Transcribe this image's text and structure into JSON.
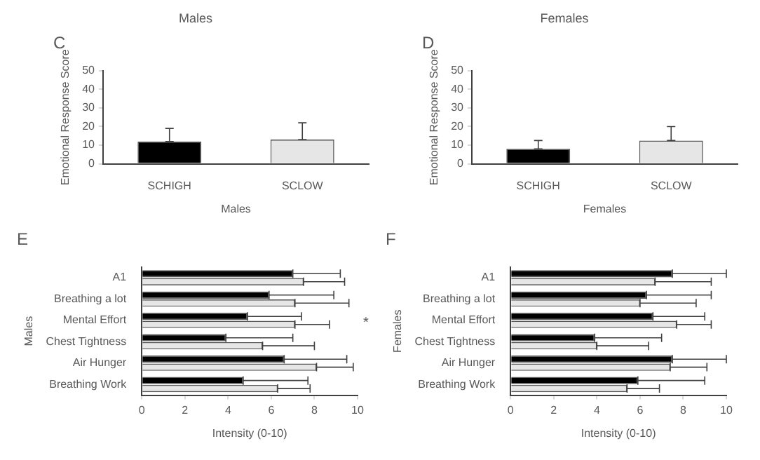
{
  "chart_data": [
    {
      "type": "bar",
      "title": "C",
      "subtitle": "Males",
      "xlabel": "Males",
      "ylabel": "Emotional Response Score",
      "categories": [
        "SCHIGH",
        "SCLOW"
      ],
      "values": [
        12,
        13
      ],
      "colors": [
        "#000000",
        "#e6e6e6"
      ],
      "errors": [
        [
          12,
          19
        ],
        [
          13,
          22
        ]
      ],
      "ylim": [
        0,
        50
      ],
      "yticks": [
        0,
        10,
        20,
        30,
        40,
        50
      ]
    },
    {
      "type": "bar",
      "title": "D",
      "subtitle": "Females",
      "xlabel": "Females",
      "ylabel": "Emotional Response Score",
      "categories": [
        "SCHIGH",
        "SCLOW"
      ],
      "values": [
        8,
        12.5
      ],
      "colors": [
        "#000000",
        "#e6e6e6"
      ],
      "errors": [
        [
          8,
          12.5
        ],
        [
          12.5,
          20
        ]
      ],
      "ylim": [
        0,
        50
      ],
      "yticks": [
        0,
        10,
        20,
        30,
        40,
        50
      ]
    },
    {
      "type": "bar",
      "orientation": "horizontal",
      "title": "E",
      "annotations": [
        "*"
      ],
      "xlabel": "Intensity (0-10)",
      "ylabel": "Males",
      "categories": [
        "A1",
        "Breathing a lot",
        "Mental Effort",
        "Chest Tightness",
        "Air Hunger",
        "Breathing Work"
      ],
      "series": [
        {
          "color": "#000000",
          "values": [
            7.0,
            5.9,
            4.9,
            3.9,
            6.6,
            4.7
          ],
          "errors": [
            [
              7.0,
              9.2
            ],
            [
              5.9,
              8.9
            ],
            [
              4.9,
              7.4
            ],
            [
              3.9,
              7.0
            ],
            [
              6.6,
              9.5
            ],
            [
              4.7,
              7.7
            ]
          ]
        },
        {
          "color": "#e6e6e6",
          "values": [
            7.5,
            7.1,
            7.1,
            5.6,
            8.1,
            6.3
          ],
          "errors": [
            [
              7.5,
              9.4
            ],
            [
              7.1,
              9.6
            ],
            [
              7.1,
              8.7
            ],
            [
              5.6,
              8.0
            ],
            [
              8.1,
              9.8
            ],
            [
              6.3,
              7.8
            ]
          ]
        }
      ],
      "xlim": [
        0,
        10
      ],
      "xticks": [
        0,
        2,
        4,
        6,
        8,
        10
      ]
    },
    {
      "type": "bar",
      "orientation": "horizontal",
      "title": "F",
      "xlabel": "Intensity (0-10)",
      "ylabel": "Females",
      "categories": [
        "A1",
        "Breathing a lot",
        "Mental Effort",
        "Chest Tightness",
        "Air Hunger",
        "Breathing Work"
      ],
      "series": [
        {
          "color": "#000000",
          "values": [
            7.5,
            6.3,
            6.6,
            3.9,
            7.5,
            5.9
          ],
          "errors": [
            [
              7.5,
              10
            ],
            [
              6.3,
              9.3
            ],
            [
              6.6,
              9.0
            ],
            [
              3.9,
              7.0
            ],
            [
              7.5,
              10
            ],
            [
              5.9,
              9.0
            ]
          ]
        },
        {
          "color": "#e6e6e6",
          "values": [
            6.7,
            6.0,
            7.7,
            4.0,
            7.4,
            5.4
          ],
          "errors": [
            [
              6.7,
              9.3
            ],
            [
              6.0,
              8.6
            ],
            [
              7.7,
              9.3
            ],
            [
              4.0,
              6.4
            ],
            [
              7.4,
              9.1
            ],
            [
              5.4,
              6.9
            ]
          ]
        }
      ],
      "xlim": [
        0,
        10
      ],
      "xticks": [
        0,
        2,
        4,
        6,
        8,
        10
      ]
    }
  ]
}
